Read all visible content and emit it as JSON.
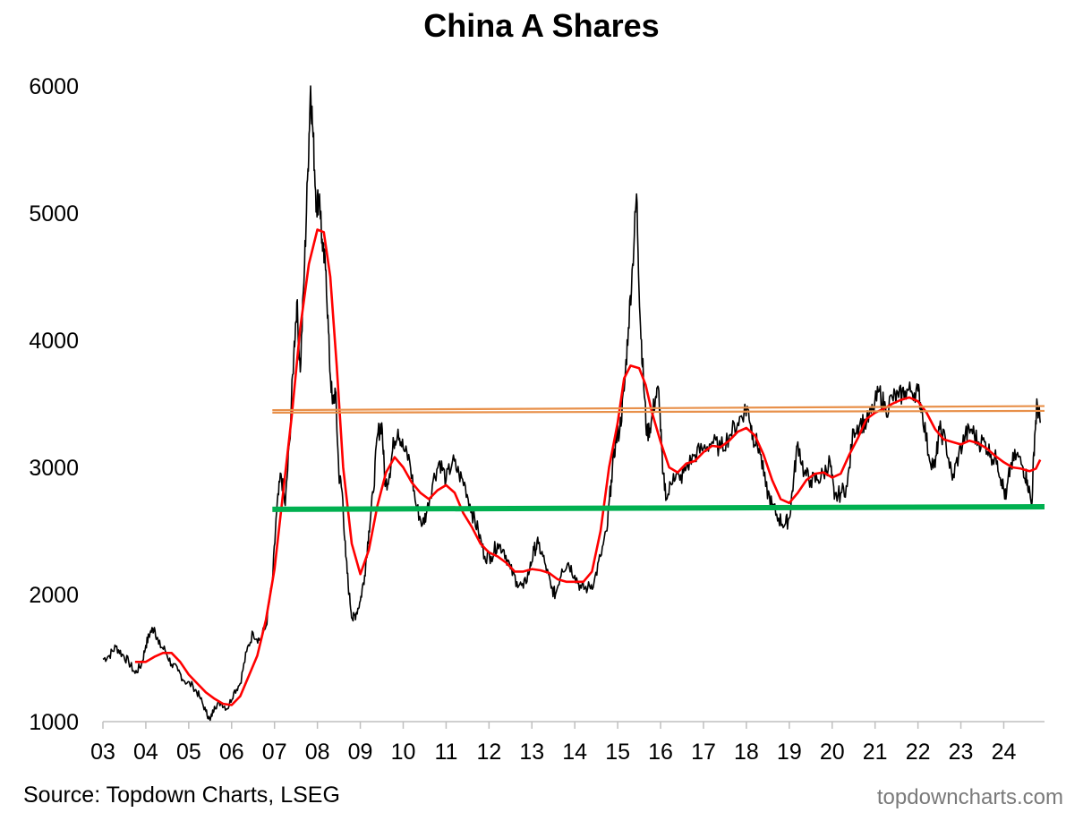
{
  "chart_data": {
    "type": "line",
    "title": "China A Shares",
    "xlabel": "",
    "ylabel": "",
    "x_range": [
      2003.0,
      2024.95
    ],
    "ylim": [
      1000,
      6000
    ],
    "x_tick_labels": [
      "03",
      "04",
      "05",
      "06",
      "07",
      "08",
      "09",
      "10",
      "11",
      "12",
      "13",
      "14",
      "15",
      "16",
      "17",
      "18",
      "19",
      "20",
      "21",
      "22",
      "23",
      "24"
    ],
    "y_tick_labels": [
      "1000",
      "2000",
      "3000",
      "4000",
      "5000",
      "6000"
    ],
    "y_ticks": [
      1000,
      2000,
      3000,
      4000,
      5000,
      6000
    ],
    "grid": false,
    "legend": "none",
    "series": [
      {
        "role": "index",
        "color": "#000000",
        "points": [
          [
            2003.0,
            1490
          ],
          [
            2003.15,
            1520
          ],
          [
            2003.3,
            1590
          ],
          [
            2003.45,
            1530
          ],
          [
            2003.6,
            1470
          ],
          [
            2003.75,
            1380
          ],
          [
            2003.9,
            1450
          ],
          [
            2004.0,
            1600
          ],
          [
            2004.1,
            1700
          ],
          [
            2004.2,
            1740
          ],
          [
            2004.3,
            1610
          ],
          [
            2004.45,
            1560
          ],
          [
            2004.6,
            1450
          ],
          [
            2004.75,
            1400
          ],
          [
            2004.9,
            1320
          ],
          [
            2005.1,
            1280
          ],
          [
            2005.25,
            1200
          ],
          [
            2005.4,
            1080
          ],
          [
            2005.5,
            1010
          ],
          [
            2005.6,
            1120
          ],
          [
            2005.75,
            1150
          ],
          [
            2005.9,
            1100
          ],
          [
            2006.05,
            1230
          ],
          [
            2006.2,
            1300
          ],
          [
            2006.35,
            1550
          ],
          [
            2006.5,
            1700
          ],
          [
            2006.65,
            1640
          ],
          [
            2006.8,
            1750
          ],
          [
            2006.95,
            2100
          ],
          [
            2007.05,
            2650
          ],
          [
            2007.15,
            2950
          ],
          [
            2007.25,
            2700
          ],
          [
            2007.35,
            3200
          ],
          [
            2007.45,
            3900
          ],
          [
            2007.52,
            4300
          ],
          [
            2007.6,
            3750
          ],
          [
            2007.7,
            4600
          ],
          [
            2007.78,
            5350
          ],
          [
            2007.84,
            6000
          ],
          [
            2007.9,
            5600
          ],
          [
            2007.98,
            5050
          ],
          [
            2008.05,
            5150
          ],
          [
            2008.12,
            4700
          ],
          [
            2008.2,
            4550
          ],
          [
            2008.28,
            3850
          ],
          [
            2008.35,
            3500
          ],
          [
            2008.42,
            3600
          ],
          [
            2008.5,
            2950
          ],
          [
            2008.58,
            2800
          ],
          [
            2008.66,
            2300
          ],
          [
            2008.74,
            2000
          ],
          [
            2008.82,
            1800
          ],
          [
            2008.9,
            1850
          ],
          [
            2009.0,
            1950
          ],
          [
            2009.1,
            2150
          ],
          [
            2009.2,
            2500
          ],
          [
            2009.3,
            2800
          ],
          [
            2009.4,
            3250
          ],
          [
            2009.5,
            3350
          ],
          [
            2009.58,
            2850
          ],
          [
            2009.68,
            2950
          ],
          [
            2009.78,
            3200
          ],
          [
            2009.88,
            3300
          ],
          [
            2010.0,
            3150
          ],
          [
            2010.15,
            3050
          ],
          [
            2010.3,
            2700
          ],
          [
            2010.45,
            2550
          ],
          [
            2010.55,
            2650
          ],
          [
            2010.7,
            2900
          ],
          [
            2010.85,
            3050
          ],
          [
            2011.0,
            2900
          ],
          [
            2011.15,
            3050
          ],
          [
            2011.3,
            2950
          ],
          [
            2011.45,
            2850
          ],
          [
            2011.6,
            2650
          ],
          [
            2011.75,
            2500
          ],
          [
            2011.9,
            2300
          ],
          [
            2012.05,
            2300
          ],
          [
            2012.2,
            2400
          ],
          [
            2012.35,
            2350
          ],
          [
            2012.5,
            2200
          ],
          [
            2012.65,
            2100
          ],
          [
            2012.8,
            2050
          ],
          [
            2012.95,
            2200
          ],
          [
            2013.05,
            2350
          ],
          [
            2013.15,
            2400
          ],
          [
            2013.3,
            2250
          ],
          [
            2013.45,
            2050
          ],
          [
            2013.55,
            2000
          ],
          [
            2013.7,
            2200
          ],
          [
            2013.85,
            2250
          ],
          [
            2014.0,
            2150
          ],
          [
            2014.15,
            2050
          ],
          [
            2014.3,
            2050
          ],
          [
            2014.45,
            2100
          ],
          [
            2014.6,
            2300
          ],
          [
            2014.75,
            2500
          ],
          [
            2014.85,
            2900
          ],
          [
            2014.95,
            3200
          ],
          [
            2015.05,
            3300
          ],
          [
            2015.15,
            3600
          ],
          [
            2015.25,
            4100
          ],
          [
            2015.35,
            4600
          ],
          [
            2015.44,
            5150
          ],
          [
            2015.52,
            4200
          ],
          [
            2015.6,
            3700
          ],
          [
            2015.68,
            3250
          ],
          [
            2015.78,
            3350
          ],
          [
            2015.88,
            3550
          ],
          [
            2015.96,
            3600
          ],
          [
            2016.05,
            2950
          ],
          [
            2016.15,
            2750
          ],
          [
            2016.3,
            2950
          ],
          [
            2016.45,
            2900
          ],
          [
            2016.6,
            3000
          ],
          [
            2016.8,
            3100
          ],
          [
            2017.0,
            3150
          ],
          [
            2017.2,
            3200
          ],
          [
            2017.4,
            3150
          ],
          [
            2017.6,
            3250
          ],
          [
            2017.8,
            3350
          ],
          [
            2017.95,
            3450
          ],
          [
            2018.05,
            3450
          ],
          [
            2018.15,
            3250
          ],
          [
            2018.3,
            3150
          ],
          [
            2018.45,
            2850
          ],
          [
            2018.6,
            2700
          ],
          [
            2018.75,
            2600
          ],
          [
            2018.9,
            2550
          ],
          [
            2019.0,
            2600
          ],
          [
            2019.1,
            2900
          ],
          [
            2019.2,
            3200
          ],
          [
            2019.35,
            2950
          ],
          [
            2019.5,
            2900
          ],
          [
            2019.65,
            2900
          ],
          [
            2019.8,
            2950
          ],
          [
            2019.95,
            3050
          ],
          [
            2020.05,
            2750
          ],
          [
            2020.2,
            2800
          ],
          [
            2020.35,
            2850
          ],
          [
            2020.5,
            3300
          ],
          [
            2020.65,
            3350
          ],
          [
            2020.8,
            3350
          ],
          [
            2020.95,
            3450
          ],
          [
            2021.1,
            3600
          ],
          [
            2021.25,
            3450
          ],
          [
            2021.4,
            3550
          ],
          [
            2021.55,
            3550
          ],
          [
            2021.7,
            3600
          ],
          [
            2021.85,
            3600
          ],
          [
            2022.0,
            3600
          ],
          [
            2022.1,
            3450
          ],
          [
            2022.25,
            3100
          ],
          [
            2022.4,
            3000
          ],
          [
            2022.5,
            3300
          ],
          [
            2022.65,
            3200
          ],
          [
            2022.8,
            2900
          ],
          [
            2022.95,
            3100
          ],
          [
            2023.1,
            3250
          ],
          [
            2023.25,
            3300
          ],
          [
            2023.4,
            3200
          ],
          [
            2023.55,
            3200
          ],
          [
            2023.7,
            3100
          ],
          [
            2023.85,
            3050
          ],
          [
            2023.95,
            2900
          ],
          [
            2024.05,
            2750
          ],
          [
            2024.15,
            3000
          ],
          [
            2024.3,
            3100
          ],
          [
            2024.45,
            3000
          ],
          [
            2024.55,
            2900
          ],
          [
            2024.65,
            2700
          ],
          [
            2024.72,
            3250
          ],
          [
            2024.78,
            3500
          ],
          [
            2024.85,
            3350
          ]
        ]
      },
      {
        "role": "moving-average",
        "color": "#ff0000",
        "points": [
          [
            2003.75,
            1470
          ],
          [
            2004.0,
            1470
          ],
          [
            2004.2,
            1510
          ],
          [
            2004.4,
            1540
          ],
          [
            2004.6,
            1540
          ],
          [
            2004.8,
            1470
          ],
          [
            2005.0,
            1370
          ],
          [
            2005.2,
            1300
          ],
          [
            2005.4,
            1230
          ],
          [
            2005.6,
            1180
          ],
          [
            2005.8,
            1140
          ],
          [
            2006.0,
            1130
          ],
          [
            2006.2,
            1200
          ],
          [
            2006.4,
            1360
          ],
          [
            2006.6,
            1520
          ],
          [
            2006.8,
            1800
          ],
          [
            2007.0,
            2200
          ],
          [
            2007.2,
            2800
          ],
          [
            2007.4,
            3400
          ],
          [
            2007.6,
            4100
          ],
          [
            2007.8,
            4600
          ],
          [
            2008.0,
            4870
          ],
          [
            2008.15,
            4850
          ],
          [
            2008.3,
            4500
          ],
          [
            2008.45,
            3800
          ],
          [
            2008.6,
            3000
          ],
          [
            2008.8,
            2400
          ],
          [
            2009.0,
            2160
          ],
          [
            2009.2,
            2350
          ],
          [
            2009.4,
            2700
          ],
          [
            2009.6,
            2960
          ],
          [
            2009.8,
            3080
          ],
          [
            2010.0,
            3000
          ],
          [
            2010.2,
            2880
          ],
          [
            2010.4,
            2800
          ],
          [
            2010.6,
            2750
          ],
          [
            2010.8,
            2820
          ],
          [
            2011.0,
            2860
          ],
          [
            2011.2,
            2800
          ],
          [
            2011.4,
            2640
          ],
          [
            2011.6,
            2530
          ],
          [
            2011.8,
            2400
          ],
          [
            2012.0,
            2330
          ],
          [
            2012.2,
            2300
          ],
          [
            2012.4,
            2250
          ],
          [
            2012.6,
            2180
          ],
          [
            2012.8,
            2180
          ],
          [
            2013.0,
            2200
          ],
          [
            2013.2,
            2190
          ],
          [
            2013.4,
            2170
          ],
          [
            2013.6,
            2120
          ],
          [
            2013.8,
            2100
          ],
          [
            2014.0,
            2100
          ],
          [
            2014.2,
            2100
          ],
          [
            2014.4,
            2180
          ],
          [
            2014.6,
            2500
          ],
          [
            2014.8,
            3000
          ],
          [
            2015.0,
            3350
          ],
          [
            2015.15,
            3700
          ],
          [
            2015.3,
            3800
          ],
          [
            2015.5,
            3780
          ],
          [
            2015.65,
            3650
          ],
          [
            2015.8,
            3430
          ],
          [
            2016.0,
            3200
          ],
          [
            2016.2,
            3000
          ],
          [
            2016.4,
            2960
          ],
          [
            2016.6,
            3030
          ],
          [
            2016.8,
            3050
          ],
          [
            2017.0,
            3120
          ],
          [
            2017.2,
            3170
          ],
          [
            2017.4,
            3160
          ],
          [
            2017.6,
            3210
          ],
          [
            2017.8,
            3280
          ],
          [
            2018.0,
            3310
          ],
          [
            2018.2,
            3250
          ],
          [
            2018.4,
            3100
          ],
          [
            2018.6,
            2900
          ],
          [
            2018.8,
            2750
          ],
          [
            2019.0,
            2720
          ],
          [
            2019.2,
            2800
          ],
          [
            2019.4,
            2900
          ],
          [
            2019.6,
            2950
          ],
          [
            2019.8,
            2960
          ],
          [
            2020.0,
            2920
          ],
          [
            2020.2,
            2950
          ],
          [
            2020.4,
            3100
          ],
          [
            2020.6,
            3230
          ],
          [
            2020.8,
            3380
          ],
          [
            2021.0,
            3430
          ],
          [
            2021.2,
            3460
          ],
          [
            2021.4,
            3500
          ],
          [
            2021.6,
            3530
          ],
          [
            2021.8,
            3550
          ],
          [
            2022.0,
            3520
          ],
          [
            2022.2,
            3430
          ],
          [
            2022.4,
            3300
          ],
          [
            2022.6,
            3220
          ],
          [
            2022.8,
            3200
          ],
          [
            2023.0,
            3180
          ],
          [
            2023.2,
            3210
          ],
          [
            2023.4,
            3190
          ],
          [
            2023.6,
            3150
          ],
          [
            2023.8,
            3090
          ],
          [
            2024.0,
            3040
          ],
          [
            2024.2,
            3000
          ],
          [
            2024.4,
            2990
          ],
          [
            2024.6,
            2970
          ],
          [
            2024.75,
            2990
          ],
          [
            2024.85,
            3060
          ]
        ]
      }
    ],
    "reference_lines": [
      {
        "role": "resistance-upper",
        "color": "#e8904a",
        "x": [
          2006.95,
          2024.95
        ],
        "y": [
          3450,
          3482
        ]
      },
      {
        "role": "resistance-lower",
        "color": "#e8904a",
        "x": [
          2006.95,
          2024.95
        ],
        "y": [
          3430,
          3444
        ]
      },
      {
        "role": "support",
        "color": "#00b050",
        "x": [
          2006.95,
          2024.95
        ],
        "y": [
          2670,
          2690
        ]
      }
    ]
  },
  "footer": {
    "source": "Source: Topdown Charts, LSEG",
    "watermark": "topdowncharts.com"
  }
}
